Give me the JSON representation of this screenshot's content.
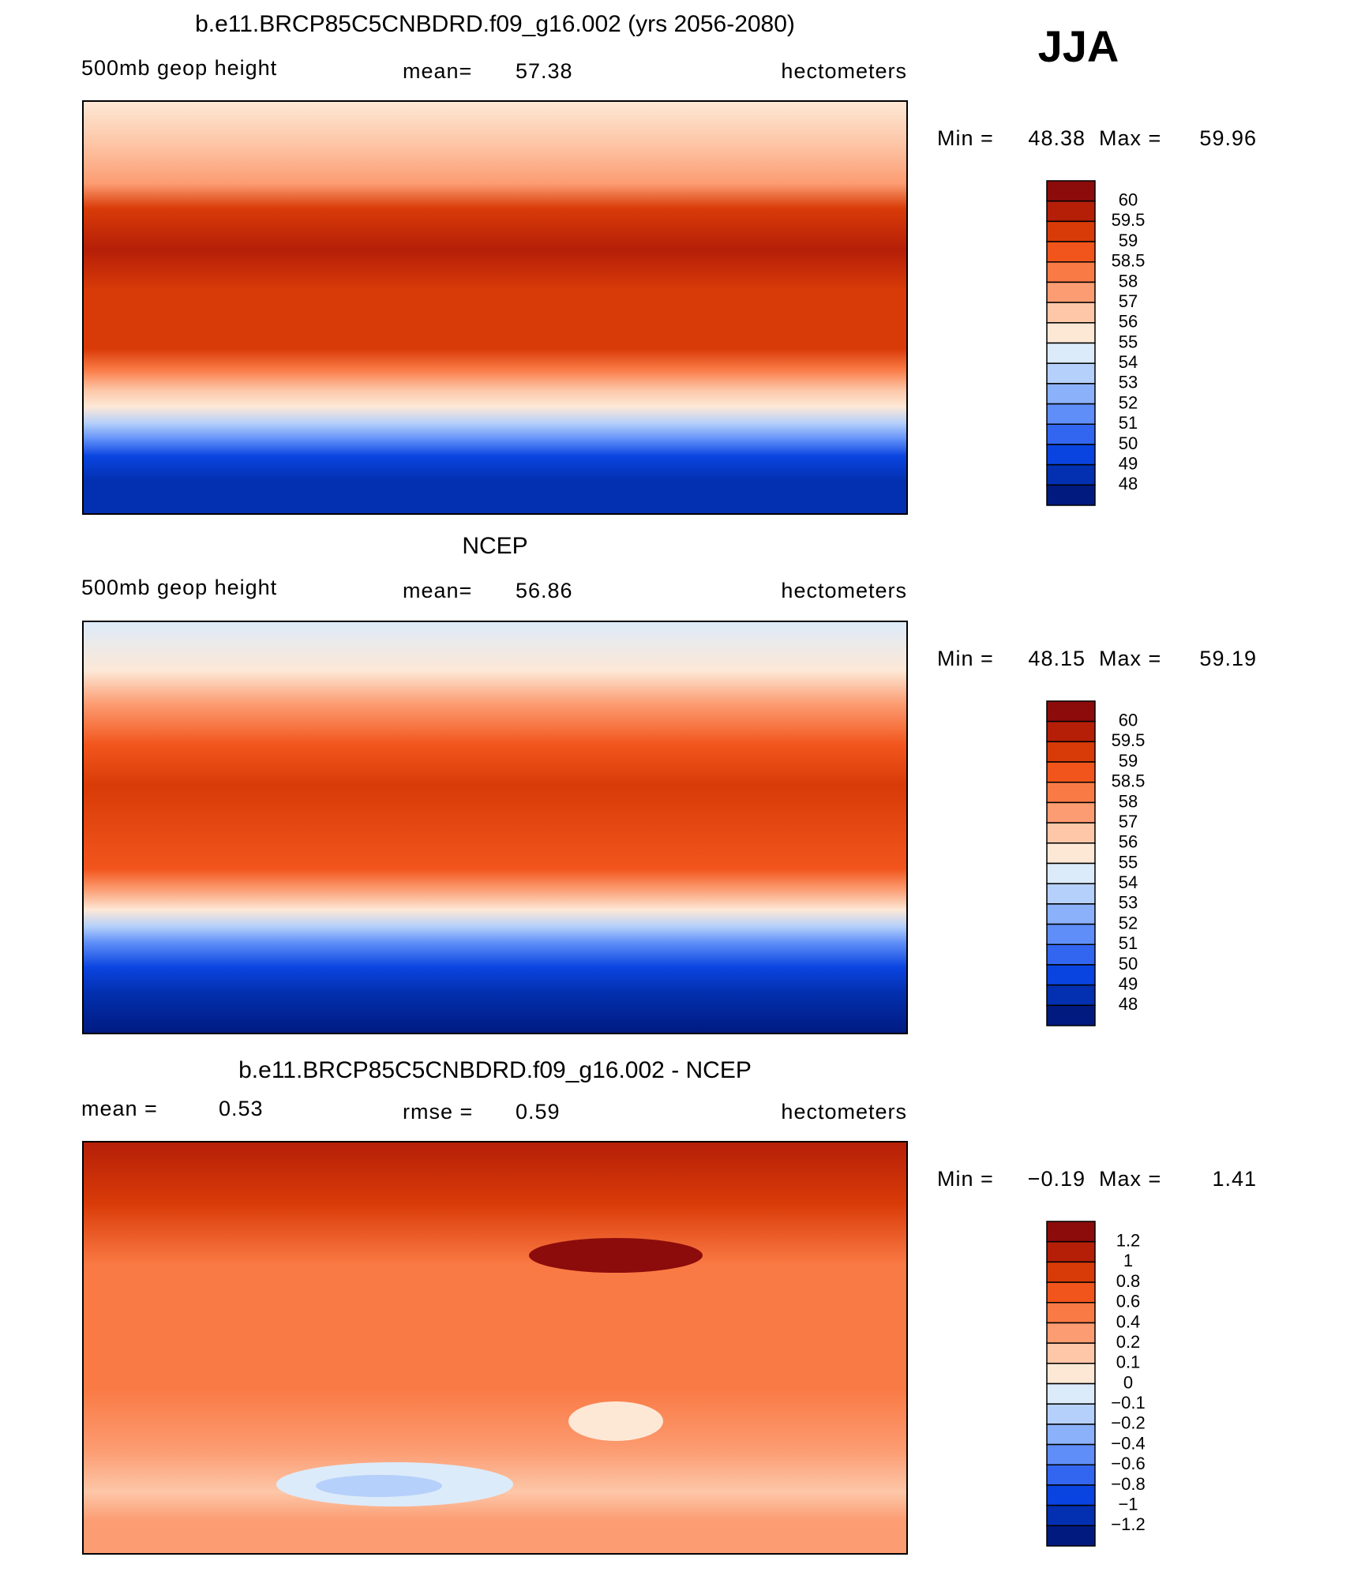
{
  "season": "JJA",
  "panels": [
    {
      "title": "b.e11.BRCP85C5CNBDRD.f09_g16.002 (yrs 2056-2080)",
      "left": "500mb  geop  height",
      "mean_label": "mean=",
      "mean": 57.38,
      "units": "hectometers",
      "min_label": "Min =",
      "min": 48.38,
      "max_label": "Max =",
      "max": 59.96,
      "levels": [
        60,
        59.5,
        59,
        58.5,
        58,
        57,
        56,
        55,
        54,
        53,
        52,
        51,
        50,
        49,
        48
      ]
    },
    {
      "title": "NCEP",
      "left": "500mb  geop  height",
      "mean_label": "mean=",
      "mean": 56.86,
      "units": "hectometers",
      "min_label": "Min =",
      "min": 48.15,
      "max_label": "Max =",
      "max": 59.19,
      "levels": [
        60,
        59.5,
        59,
        58.5,
        58,
        57,
        56,
        55,
        54,
        53,
        52,
        51,
        50,
        49,
        48
      ]
    },
    {
      "title": "b.e11.BRCP85C5CNBDRD.f09_g16.002 - NCEP",
      "left": "mean =",
      "left_value": 0.53,
      "mean_label": "rmse =",
      "mean": 0.59,
      "units": "hectometers",
      "min_label": "Min =",
      "min": "−0.19",
      "max_label": "Max =",
      "max": 1.41,
      "levels": [
        1.2,
        1,
        0.8,
        0.6,
        0.4,
        0.2,
        0.1,
        0,
        "−0.1",
        "−0.2",
        "−0.4",
        "−0.6",
        "−0.8",
        "−1",
        "−1.2"
      ]
    }
  ],
  "colors": [
    "#8c0c0c",
    "#b51f08",
    "#d93b08",
    "#f2551c",
    "#fa7a45",
    "#fc9c72",
    "#fdc7a8",
    "#fde8d6",
    "#dcebfa",
    "#b5d0fa",
    "#8cb1fb",
    "#5f8ef8",
    "#3366f0",
    "#0a44e0",
    "#0330b0",
    "#001a80"
  ]
}
